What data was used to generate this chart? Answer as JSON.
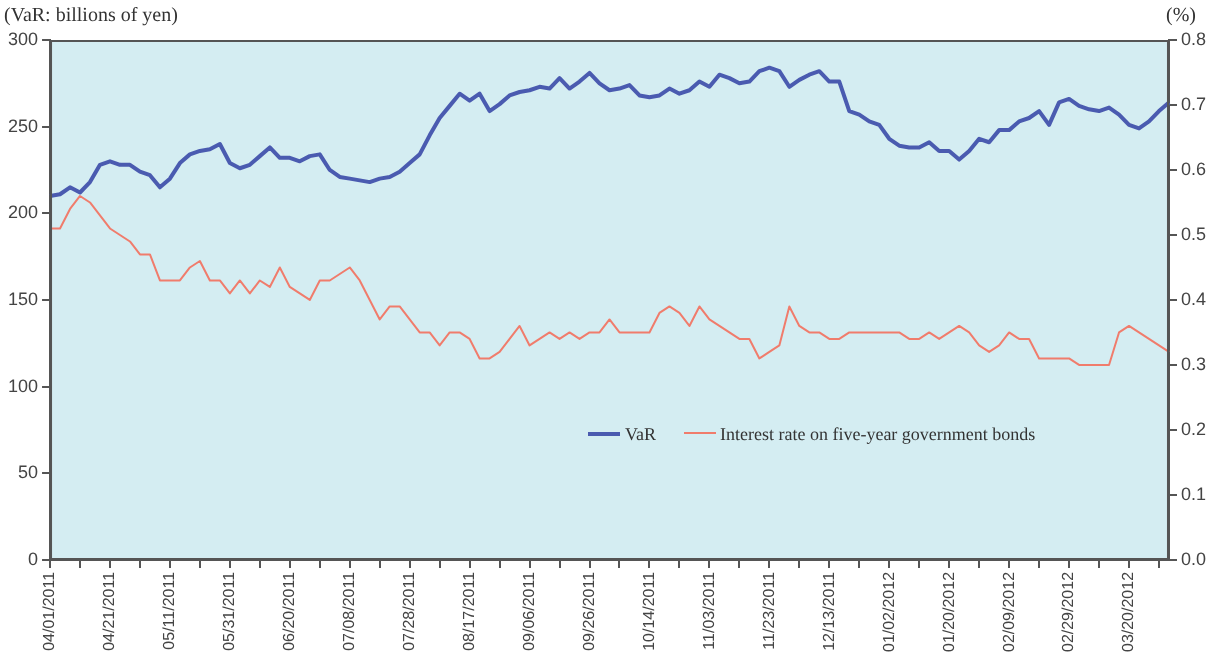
{
  "chart_data": {
    "type": "line",
    "ylabel": "(VaR: billions of yen)",
    "y2label": "(%)",
    "categories": [
      "04/01/2011",
      null,
      null,
      null,
      null,
      null,
      "04/21/2011",
      null,
      null,
      null,
      null,
      null,
      "05/11/2011",
      null,
      null,
      null,
      null,
      null,
      "05/31/2011",
      null,
      null,
      null,
      null,
      null,
      "06/20/2011",
      null,
      null,
      null,
      null,
      null,
      "07/08/2011",
      null,
      null,
      null,
      null,
      null,
      "07/28/2011",
      null,
      null,
      null,
      null,
      null,
      "08/17/2011",
      null,
      null,
      null,
      null,
      null,
      "09/06/2011",
      null,
      null,
      null,
      null,
      null,
      "09/26/2011",
      null,
      null,
      null,
      null,
      null,
      "10/14/2011",
      null,
      null,
      null,
      null,
      null,
      "11/03/2011",
      null,
      null,
      null,
      null,
      null,
      "11/23/2011",
      null,
      null,
      null,
      null,
      null,
      "12/13/2011",
      null,
      null,
      null,
      null,
      null,
      "01/02/2012",
      null,
      null,
      null,
      null,
      null,
      "01/20/2012",
      null,
      null,
      null,
      null,
      null,
      "02/09/2012",
      null,
      null,
      null,
      null,
      null,
      "02/29/2012",
      null,
      null,
      null,
      null,
      null,
      "03/20/2012",
      null,
      null,
      null,
      null
    ],
    "series": [
      {
        "name": "VaR",
        "color": "#4a5bb0",
        "values": [
          210,
          211,
          215,
          212,
          218,
          228,
          230,
          228,
          228,
          224,
          222,
          215,
          220,
          229,
          234,
          236,
          237,
          240,
          229,
          226,
          228,
          233,
          238,
          232,
          232,
          230,
          233,
          234,
          225,
          221,
          220,
          219,
          218,
          220,
          221,
          224,
          229,
          234,
          245,
          255,
          262,
          269,
          265,
          269,
          259,
          263,
          268,
          270,
          271,
          273,
          272,
          278,
          272,
          276,
          281,
          275,
          271,
          272,
          274,
          268,
          267,
          268,
          272,
          269,
          271,
          276,
          273,
          280,
          278,
          275,
          276,
          282,
          284,
          282,
          273,
          277,
          280,
          282,
          276,
          276,
          259,
          257,
          253,
          251,
          243,
          239,
          238,
          238,
          241,
          236,
          236,
          231,
          236,
          243,
          241,
          248,
          248,
          253,
          255,
          259,
          251,
          264,
          266,
          262,
          260,
          259,
          261,
          257,
          251,
          249,
          253,
          259,
          264
        ]
      },
      {
        "name": "Interest rate on five-year government bonds",
        "color": "#f07c6c",
        "axis": "y2",
        "values": [
          0.51,
          0.51,
          0.54,
          0.56,
          0.55,
          0.53,
          0.51,
          0.5,
          0.49,
          0.47,
          0.47,
          0.43,
          0.43,
          0.43,
          0.45,
          0.46,
          0.43,
          0.43,
          0.41,
          0.43,
          0.41,
          0.43,
          0.42,
          0.45,
          0.42,
          0.41,
          0.4,
          0.43,
          0.43,
          0.44,
          0.45,
          0.43,
          0.4,
          0.37,
          0.39,
          0.39,
          0.37,
          0.35,
          0.35,
          0.33,
          0.35,
          0.35,
          0.34,
          0.31,
          0.31,
          0.32,
          0.34,
          0.36,
          0.33,
          0.34,
          0.35,
          0.34,
          0.35,
          0.34,
          0.35,
          0.35,
          0.37,
          0.35,
          0.35,
          0.35,
          0.35,
          0.38,
          0.39,
          0.38,
          0.36,
          0.39,
          0.37,
          0.36,
          0.35,
          0.34,
          0.34,
          0.31,
          0.32,
          0.33,
          0.39,
          0.36,
          0.35,
          0.35,
          0.34,
          0.34,
          0.35,
          0.35,
          0.35,
          0.35,
          0.35,
          0.35,
          0.34,
          0.34,
          0.35,
          0.34,
          0.35,
          0.36,
          0.35,
          0.33,
          0.32,
          0.33,
          0.35,
          0.34,
          0.34,
          0.31,
          0.31,
          0.31,
          0.31,
          0.3,
          0.3,
          0.3,
          0.3,
          0.35,
          0.36,
          0.35,
          0.34,
          0.33,
          0.32
        ]
      }
    ],
    "ylim": [
      0,
      300
    ],
    "yticks": [
      0,
      50,
      100,
      150,
      200,
      250,
      300
    ],
    "y2lim": [
      0,
      0.8
    ],
    "y2ticks": [
      {
        "value": 0,
        "label": "0.0"
      },
      {
        "value": 0.1,
        "label": "0.1"
      },
      {
        "value": 0.2,
        "label": "0.2"
      },
      {
        "value": 0.3,
        "label": "0.3"
      },
      {
        "value": 0.4,
        "label": "0.4"
      },
      {
        "value": 0.5,
        "label": "0.5"
      },
      {
        "value": 0.6,
        "label": "0.6"
      },
      {
        "value": 0.7,
        "label": "0.7"
      },
      {
        "value": 0.8,
        "label": "0.8"
      }
    ],
    "grid": false,
    "legend": "bottom right",
    "marker": "none",
    "line_style": "solid"
  }
}
